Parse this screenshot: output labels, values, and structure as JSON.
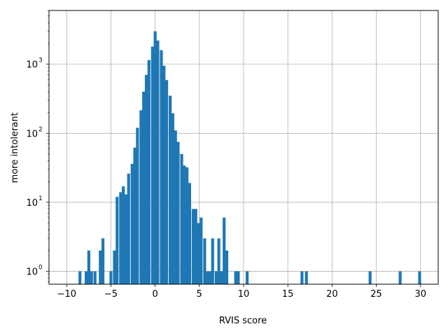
{
  "chart_data": {
    "type": "bar",
    "subtype": "histogram",
    "title": "",
    "xlabel": "RVIS score",
    "ylabel": "more intolerant",
    "xlim": [
      -12,
      32
    ],
    "ylim": [
      0.65,
      6000
    ],
    "yscale": "log",
    "grid": true,
    "bar_color": "#1f77b4",
    "bin_width": 0.331,
    "xticks": [
      -10,
      -5,
      0,
      5,
      10,
      15,
      20,
      25,
      30
    ],
    "xtick_labels": [
      "−10",
      "−5",
      "0",
      "5",
      "10",
      "15",
      "20",
      "25",
      "30"
    ],
    "yticks": [
      1,
      10,
      100,
      1000
    ],
    "ytick_labels": [
      "10",
      "10",
      "10",
      "10"
    ],
    "ytick_exponents": [
      "0",
      "1",
      "2",
      "3"
    ],
    "bins": [
      {
        "x": -8.5,
        "count": 1
      },
      {
        "x": -7.8,
        "count": 1
      },
      {
        "x": -7.5,
        "count": 2
      },
      {
        "x": -7.2,
        "count": 1
      },
      {
        "x": -6.8,
        "count": 1
      },
      {
        "x": -6.2,
        "count": 2
      },
      {
        "x": -5.9,
        "count": 3
      },
      {
        "x": -5.0,
        "count": 1
      },
      {
        "x": -4.6,
        "count": 2
      },
      {
        "x": -4.3,
        "count": 12
      },
      {
        "x": -3.9,
        "count": 14
      },
      {
        "x": -3.6,
        "count": 17
      },
      {
        "x": -3.3,
        "count": 13
      },
      {
        "x": -3.0,
        "count": 26
      },
      {
        "x": -2.6,
        "count": 36
      },
      {
        "x": -2.3,
        "count": 62
      },
      {
        "x": -2.0,
        "count": 120
      },
      {
        "x": -1.6,
        "count": 215
      },
      {
        "x": -1.3,
        "count": 400
      },
      {
        "x": -1.0,
        "count": 700
      },
      {
        "x": -0.7,
        "count": 1150
      },
      {
        "x": -0.3,
        "count": 1800
      },
      {
        "x": 0.0,
        "count": 3000
      },
      {
        "x": 0.3,
        "count": 2200
      },
      {
        "x": 0.7,
        "count": 1600
      },
      {
        "x": 1.0,
        "count": 950
      },
      {
        "x": 1.3,
        "count": 590
      },
      {
        "x": 1.7,
        "count": 350
      },
      {
        "x": 2.0,
        "count": 195
      },
      {
        "x": 2.3,
        "count": 110
      },
      {
        "x": 2.6,
        "count": 75
      },
      {
        "x": 3.0,
        "count": 50
      },
      {
        "x": 3.3,
        "count": 34
      },
      {
        "x": 3.6,
        "count": 32
      },
      {
        "x": 3.9,
        "count": 19
      },
      {
        "x": 4.3,
        "count": 8
      },
      {
        "x": 4.6,
        "count": 8
      },
      {
        "x": 4.9,
        "count": 5
      },
      {
        "x": 5.2,
        "count": 6
      },
      {
        "x": 5.6,
        "count": 3
      },
      {
        "x": 5.9,
        "count": 1
      },
      {
        "x": 6.2,
        "count": 1
      },
      {
        "x": 6.5,
        "count": 3
      },
      {
        "x": 6.9,
        "count": 1
      },
      {
        "x": 7.2,
        "count": 3
      },
      {
        "x": 7.5,
        "count": 1
      },
      {
        "x": 7.8,
        "count": 6
      },
      {
        "x": 8.1,
        "count": 2
      },
      {
        "x": 9.1,
        "count": 1
      },
      {
        "x": 9.4,
        "count": 1
      },
      {
        "x": 10.4,
        "count": 1
      },
      {
        "x": 16.6,
        "count": 1
      },
      {
        "x": 17.1,
        "count": 1
      },
      {
        "x": 24.3,
        "count": 1
      },
      {
        "x": 27.7,
        "count": 1
      },
      {
        "x": 29.9,
        "count": 1
      }
    ]
  }
}
